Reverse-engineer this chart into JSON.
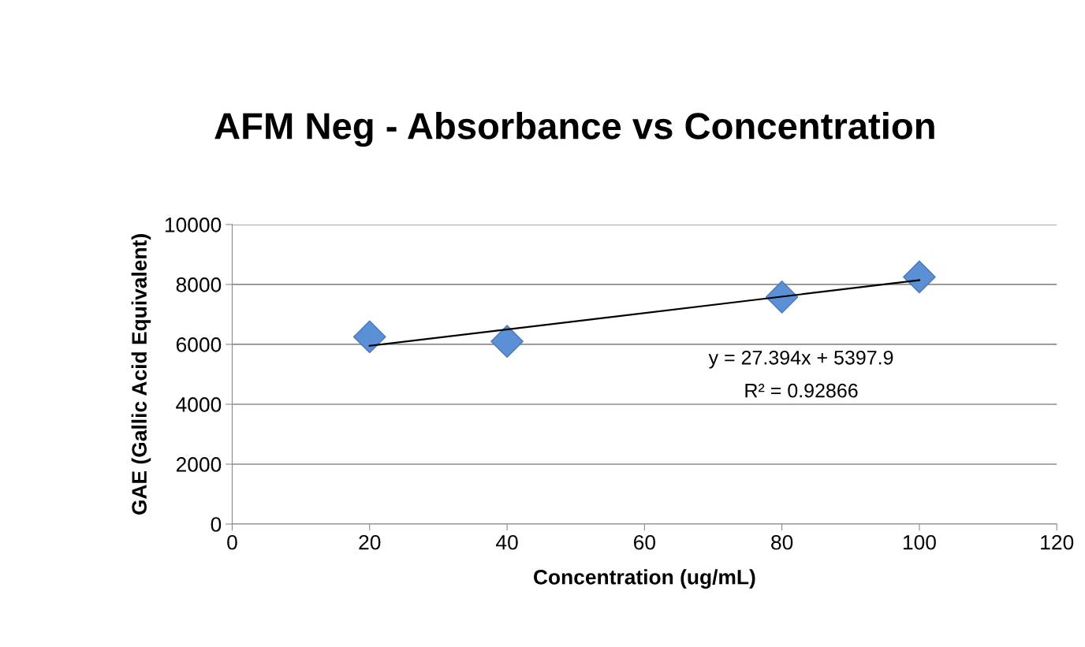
{
  "chart_data": {
    "type": "scatter",
    "title": "AFM Neg - Absorbance vs Concentration",
    "xlabel": "Concentration (ug/mL)",
    "ylabel": "GAE (Gallic Acid Equivalent)",
    "series": [
      {
        "color": "#5b8fd6",
        "x": [
          20,
          40,
          80,
          100
        ],
        "values": [
          6250,
          6100,
          7580,
          8250
        ],
        "marker": "diamond"
      },
      {
        "type": "line",
        "color": "#000000",
        "x": [
          20,
          100
        ],
        "values": [
          5950,
          8140
        ],
        "marker": "none",
        "line_style": "solid"
      }
    ],
    "annotations": [
      "y = 27.394x + 5397.9",
      "R² = 0.92866"
    ],
    "xlim": [
      0,
      120
    ],
    "xticks": [
      0,
      20,
      40,
      60,
      80,
      100,
      120
    ],
    "ylim": [
      0,
      10000
    ],
    "yticks": [
      0,
      2000,
      4000,
      6000,
      8000,
      10000
    ],
    "grid": "y"
  }
}
